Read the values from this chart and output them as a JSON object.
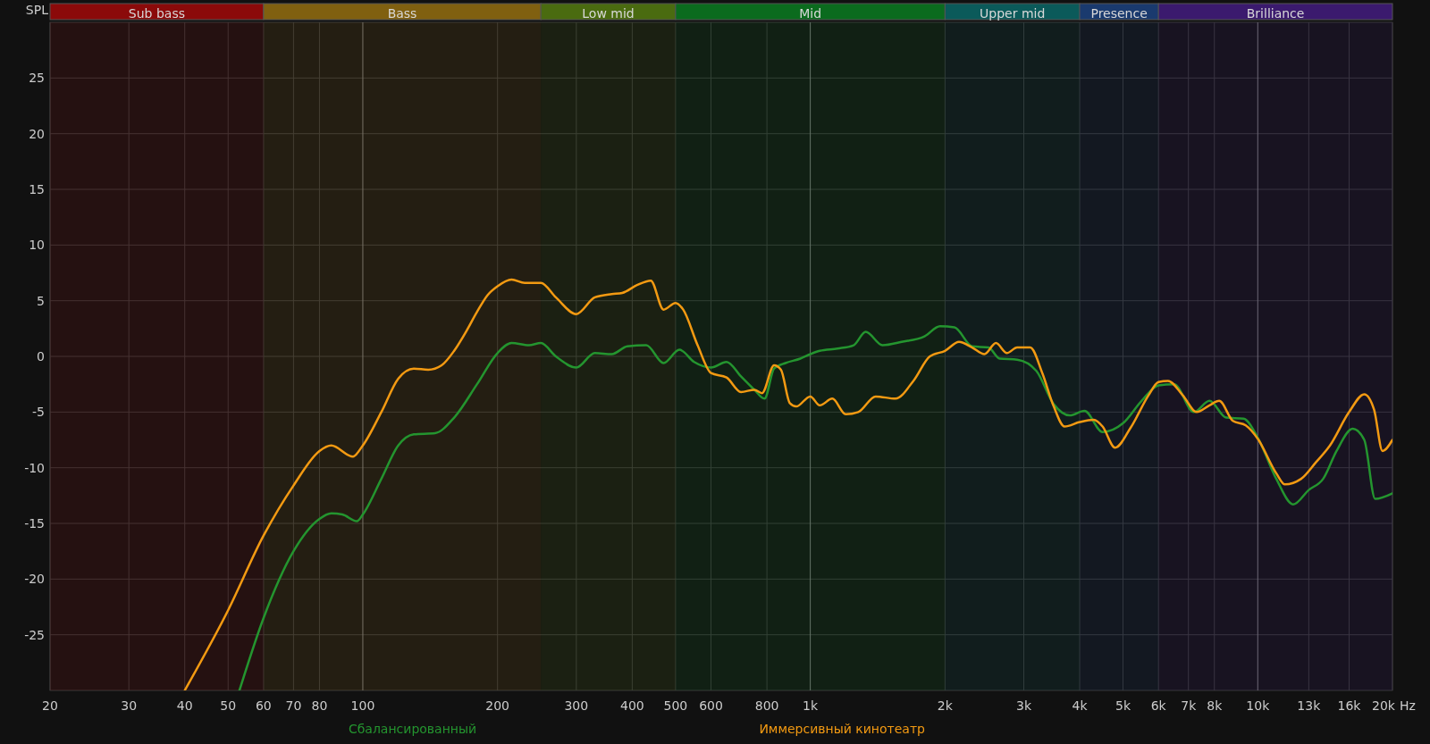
{
  "chart_data": {
    "type": "line",
    "ylabel": "SPL",
    "log": "x",
    "grid": true,
    "legend": "bottom",
    "line_style": "solid",
    "marker": "none",
    "xlim": [
      20,
      20000
    ],
    "ylim": [
      -30,
      30
    ],
    "xticks": [
      20,
      30,
      40,
      50,
      60,
      70,
      80,
      100,
      200,
      300,
      400,
      500,
      600,
      800,
      {
        "value": 1000,
        "label": "1k"
      },
      {
        "value": 2000,
        "label": "2k"
      },
      {
        "value": 3000,
        "label": "3k"
      },
      {
        "value": 4000,
        "label": "4k"
      },
      {
        "value": 5000,
        "label": "5k"
      },
      {
        "value": 6000,
        "label": "6k"
      },
      {
        "value": 7000,
        "label": "7k"
      },
      {
        "value": 8000,
        "label": "8k"
      },
      {
        "value": 10000,
        "label": "10k"
      },
      {
        "value": 13000,
        "label": "13k"
      },
      {
        "value": 16000,
        "label": "16k"
      },
      {
        "value": 20000,
        "label": "20k"
      }
    ],
    "xlabel": "Hz",
    "yticks": [
      -25,
      -20,
      -15,
      -10,
      -5,
      0,
      5,
      10,
      15,
      20,
      25
    ],
    "bands": [
      {
        "axis": "x",
        "from": 20,
        "to": 60,
        "label": "Sub bass",
        "color": "#8b0a0a"
      },
      {
        "axis": "x",
        "from": 60,
        "to": 250,
        "label": "Bass",
        "color": "#806010"
      },
      {
        "axis": "x",
        "from": 250,
        "to": 500,
        "label": "Low mid",
        "color": "#4a6b10"
      },
      {
        "axis": "x",
        "from": 500,
        "to": 2000,
        "label": "Mid",
        "color": "#0b6b1e"
      },
      {
        "axis": "x",
        "from": 2000,
        "to": 4000,
        "label": "Upper mid",
        "color": "#0b5a5a"
      },
      {
        "axis": "x",
        "from": 4000,
        "to": 6000,
        "label": "Presence",
        "color": "#1a3a6e"
      },
      {
        "axis": "x",
        "from": 6000,
        "to": 20000,
        "label": "Brilliance",
        "color": "#3b1a6e"
      }
    ],
    "series": [
      {
        "name": "Сбалансированный",
        "color": "#24952f",
        "x": [
          53,
          60,
          70,
          80,
          85,
          90,
          97,
          100,
          110,
          120,
          130,
          145,
          160,
          180,
          200,
          215,
          235,
          250,
          270,
          300,
          330,
          360,
          390,
          430,
          470,
          510,
          550,
          600,
          650,
          700,
          750,
          790,
          830,
          880,
          950,
          1000,
          1050,
          1150,
          1250,
          1330,
          1450,
          1600,
          1800,
          1950,
          2100,
          2300,
          2500,
          2650,
          2900,
          3200,
          3500,
          3800,
          4100,
          4500,
          5000,
          5500,
          6000,
          6500,
          7200,
          7800,
          8500,
          9300,
          10000,
          11000,
          12000,
          13000,
          14000,
          15000,
          16300,
          17300,
          18300,
          20000
        ],
        "values": [
          -30,
          -23.5,
          -17.5,
          -14.6,
          -14.1,
          -14.2,
          -14.8,
          -14.2,
          -11,
          -8,
          -7,
          -6.9,
          -5.5,
          -2.5,
          0.3,
          1.2,
          1,
          1.2,
          0,
          -1,
          0.3,
          0.2,
          0.9,
          1,
          -0.6,
          0.6,
          -0.5,
          -1,
          -0.5,
          -1.8,
          -3,
          -3.8,
          -1.1,
          -0.6,
          -0.2,
          0.2,
          0.5,
          0.7,
          1,
          2.2,
          1,
          1.3,
          1.8,
          2.7,
          2.6,
          0.9,
          0.8,
          -0.2,
          -0.3,
          -1.3,
          -4.3,
          -5.3,
          -4.9,
          -6.8,
          -6,
          -4,
          -2.6,
          -2.5,
          -5,
          -4,
          -5.5,
          -5.6,
          -7.3,
          -11,
          -13.3,
          -12,
          -11,
          -8.5,
          -6.5,
          -7.5,
          -12.8,
          -12.3
        ]
      },
      {
        "name": "Иммерсивный кинотеатр",
        "color": "#f39a12",
        "x": [
          40,
          50,
          60,
          70,
          80,
          85,
          95,
          100,
          110,
          120,
          130,
          140,
          150,
          160,
          170,
          180,
          190,
          200,
          215,
          230,
          250,
          270,
          300,
          330,
          360,
          380,
          410,
          440,
          470,
          500,
          520,
          560,
          600,
          650,
          700,
          750,
          780,
          830,
          860,
          900,
          930,
          1000,
          1050,
          1120,
          1200,
          1280,
          1400,
          1550,
          1700,
          1850,
          2000,
          2150,
          2300,
          2450,
          2600,
          2750,
          2900,
          3100,
          3300,
          3500,
          3700,
          4000,
          4300,
          4500,
          4800,
          5200,
          5700,
          6000,
          6300,
          6800,
          7300,
          7800,
          8200,
          8800,
          9400,
          10000,
          11000,
          11500,
          12500,
          13500,
          14500,
          16000,
          17300,
          18200,
          19000,
          20000
        ],
        "values": [
          -30,
          -22.8,
          -16.1,
          -11.6,
          -8.5,
          -8,
          -9,
          -8,
          -5,
          -2,
          -1.1,
          -1.2,
          -0.8,
          0.5,
          2.2,
          4,
          5.5,
          6.3,
          6.9,
          6.6,
          6.6,
          5.3,
          3.8,
          5.3,
          5.6,
          5.7,
          6.4,
          6.8,
          4.2,
          4.8,
          4.2,
          1,
          -1.5,
          -1.9,
          -3.2,
          -3,
          -3.3,
          -0.8,
          -1.2,
          -4.2,
          -4.5,
          -3.6,
          -4.4,
          -3.8,
          -5.2,
          -5,
          -3.6,
          -3.8,
          -2.2,
          0,
          0.5,
          1.3,
          0.8,
          0.2,
          1.2,
          0.3,
          0.8,
          0.8,
          -1.5,
          -4.5,
          -6.3,
          -5.9,
          -5.7,
          -6.3,
          -8.2,
          -6.4,
          -3.5,
          -2.3,
          -2.2,
          -3.5,
          -5,
          -4.4,
          -4,
          -5.8,
          -6.2,
          -7.4,
          -10.5,
          -11.5,
          -11,
          -9.5,
          -8,
          -5,
          -3.4,
          -4.8,
          -8.5,
          -7.5
        ]
      }
    ]
  }
}
